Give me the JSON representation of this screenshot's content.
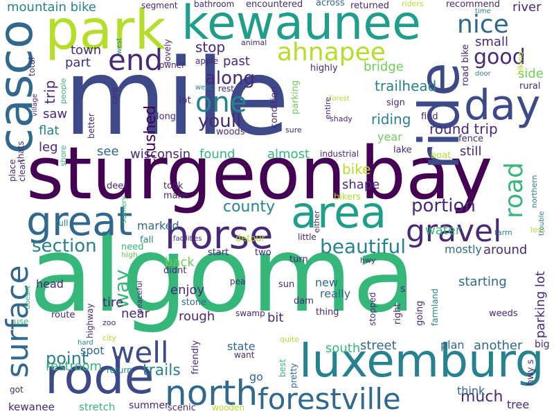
{
  "palette": {
    "purple": "#440154",
    "indigo": "#482878",
    "blue": "#3e4989",
    "steel": "#31688e",
    "teal": "#26828e",
    "green": "#1f9e89",
    "mint": "#35b779",
    "lime": "#6ece58",
    "yellow": "#b5de2b"
  },
  "words": [
    {
      "text": "algoma",
      "color": "mint"
    },
    {
      "text": "mile",
      "color": "blue"
    },
    {
      "text": "sturgeon",
      "color": "purple"
    },
    {
      "text": "bay",
      "color": "purple"
    },
    {
      "text": "ride",
      "color": "blue"
    },
    {
      "text": "park",
      "color": "yellow"
    },
    {
      "text": "kewaunee",
      "color": "green"
    },
    {
      "text": "casco",
      "color": "steel"
    },
    {
      "text": "luxemburg",
      "color": "teal"
    },
    {
      "text": "rode",
      "color": "blue"
    },
    {
      "text": "area",
      "color": "green"
    },
    {
      "text": "day",
      "color": "blue"
    },
    {
      "text": "great",
      "color": "steel"
    },
    {
      "text": "horse",
      "color": "indigo"
    },
    {
      "text": "surface",
      "color": "steel"
    },
    {
      "text": "north",
      "color": "steel"
    },
    {
      "text": "forestville",
      "color": "steel"
    },
    {
      "text": "well",
      "color": "blue"
    },
    {
      "text": "gravel",
      "color": "indigo"
    },
    {
      "text": "one",
      "color": "teal"
    },
    {
      "text": "end",
      "color": "indigo"
    },
    {
      "text": "road",
      "color": "mint"
    },
    {
      "text": "nice",
      "color": "steel"
    },
    {
      "text": "ahnapee",
      "color": "yellow"
    },
    {
      "text": "good",
      "color": "indigo"
    },
    {
      "text": "youll",
      "color": "indigo"
    },
    {
      "text": "along",
      "color": "indigo"
    },
    {
      "text": "beautiful",
      "color": "teal"
    },
    {
      "text": "section",
      "color": "teal"
    },
    {
      "text": "way",
      "color": "mint"
    },
    {
      "text": "county",
      "color": "teal"
    },
    {
      "text": "portion",
      "color": "indigo"
    },
    {
      "text": "round trip",
      "color": "indigo"
    },
    {
      "text": "much",
      "color": "indigo"
    },
    {
      "text": "point",
      "color": "teal"
    },
    {
      "text": "trails",
      "color": "teal"
    },
    {
      "text": "restroom",
      "color": "mint"
    },
    {
      "text": "bike",
      "color": "yellow"
    },
    {
      "text": "stop",
      "color": "indigo"
    },
    {
      "text": "mountain bike",
      "color": "teal"
    },
    {
      "text": "town",
      "color": "indigo"
    },
    {
      "text": "trip",
      "color": "indigo"
    },
    {
      "text": "part",
      "color": "indigo"
    },
    {
      "text": "small",
      "color": "indigo"
    },
    {
      "text": "side",
      "color": "lime"
    },
    {
      "text": "river",
      "color": "indigo"
    },
    {
      "text": "crushed",
      "color": "purple"
    },
    {
      "text": "riding",
      "color": "teal"
    },
    {
      "text": "trailhead",
      "color": "teal"
    },
    {
      "text": "bridge",
      "color": "lime"
    },
    {
      "text": "past",
      "color": "indigo"
    },
    {
      "text": "parking lot",
      "color": "indigo"
    },
    {
      "text": "wisconsin",
      "color": "indigo"
    },
    {
      "text": "found",
      "color": "mint"
    },
    {
      "text": "almost",
      "color": "mint"
    },
    {
      "text": "around",
      "color": "indigo"
    },
    {
      "text": "saw",
      "color": "indigo"
    },
    {
      "text": "leg",
      "color": "indigo"
    },
    {
      "text": "flat",
      "color": "teal"
    },
    {
      "text": "see",
      "color": "steel"
    },
    {
      "text": "back",
      "color": "lime"
    },
    {
      "text": "enjoy",
      "color": "indigo"
    },
    {
      "text": "tire",
      "color": "indigo"
    },
    {
      "text": "near",
      "color": "indigo"
    },
    {
      "text": "rough",
      "color": "indigo"
    },
    {
      "text": "head",
      "color": "indigo"
    },
    {
      "text": "new",
      "color": "steel"
    },
    {
      "text": "really",
      "color": "steel"
    },
    {
      "text": "starting",
      "color": "steel"
    },
    {
      "text": "street",
      "color": "steel"
    },
    {
      "text": "another",
      "color": "steel"
    },
    {
      "text": "south",
      "color": "mint"
    },
    {
      "text": "mostly",
      "color": "steel"
    },
    {
      "text": "water",
      "color": "mint"
    },
    {
      "text": "shape",
      "color": "indigo"
    },
    {
      "text": "year",
      "color": "lime"
    },
    {
      "text": "still",
      "color": "indigo"
    },
    {
      "text": "marked",
      "color": "steel"
    },
    {
      "text": "bit",
      "color": "indigo"
    },
    {
      "text": "spot",
      "color": "steel"
    },
    {
      "text": "tree",
      "color": "indigo"
    },
    {
      "text": "go",
      "color": "steel"
    },
    {
      "text": "think",
      "color": "steel"
    },
    {
      "text": "stretch",
      "color": "mint"
    },
    {
      "text": "kewanee",
      "color": "indigo"
    },
    {
      "text": "summer",
      "color": "indigo"
    },
    {
      "text": "scenic",
      "color": "indigo"
    },
    {
      "text": "wooden",
      "color": "yellow"
    },
    {
      "text": "state",
      "color": "steel"
    },
    {
      "text": "plan",
      "color": "steel"
    },
    {
      "text": "big",
      "color": "indigo"
    },
    {
      "text": "segment",
      "color": "indigo"
    },
    {
      "text": "bathroom",
      "color": "indigo"
    },
    {
      "text": "encountered",
      "color": "indigo"
    },
    {
      "text": "across",
      "color": "steel"
    },
    {
      "text": "returned",
      "color": "indigo"
    },
    {
      "text": "riders",
      "color": "yellow"
    },
    {
      "text": "recommend",
      "color": "indigo"
    },
    {
      "text": "time",
      "color": "teal"
    },
    {
      "text": "owner",
      "color": "indigo"
    },
    {
      "text": "apple",
      "color": "indigo"
    },
    {
      "text": "highly",
      "color": "indigo"
    },
    {
      "text": "rest",
      "color": "indigo"
    },
    {
      "text": "went",
      "color": "teal"
    },
    {
      "text": "lot",
      "color": "indigo"
    },
    {
      "text": "long",
      "color": "indigo"
    },
    {
      "text": "woods",
      "color": "indigo"
    },
    {
      "text": "sign",
      "color": "indigo"
    },
    {
      "text": "find",
      "color": "indigo"
    },
    {
      "text": "fence",
      "color": "indigo"
    },
    {
      "text": "lake",
      "color": "indigo"
    },
    {
      "text": "boat",
      "color": "yellow"
    },
    {
      "text": "industrial",
      "color": "indigo"
    },
    {
      "text": "rural",
      "color": "indigo"
    },
    {
      "text": "forest",
      "color": "yellow"
    },
    {
      "text": "shady",
      "color": "indigo"
    },
    {
      "text": "sure",
      "color": "indigo"
    },
    {
      "text": "deer",
      "color": "indigo"
    },
    {
      "text": "took",
      "color": "indigo"
    },
    {
      "text": "make",
      "color": "indigo"
    },
    {
      "text": "fall",
      "color": "teal"
    },
    {
      "text": "facilities",
      "color": "indigo"
    },
    {
      "text": "detour",
      "color": "yellow"
    },
    {
      "text": "little",
      "color": "indigo"
    },
    {
      "text": "need",
      "color": "mint"
    },
    {
      "text": "high",
      "color": "lime"
    },
    {
      "text": "didnt",
      "color": "indigo"
    },
    {
      "text": "stone",
      "color": "steel"
    },
    {
      "text": "start",
      "color": "indigo"
    },
    {
      "text": "two",
      "color": "indigo"
    },
    {
      "text": "turn",
      "color": "indigo"
    },
    {
      "text": "hwy",
      "color": "indigo"
    },
    {
      "text": "farm",
      "color": "teal"
    },
    {
      "text": "less",
      "color": "yellow"
    },
    {
      "text": "sun",
      "color": "indigo"
    },
    {
      "text": "pea",
      "color": "indigo"
    },
    {
      "text": "dam",
      "color": "indigo"
    },
    {
      "text": "s",
      "color": "indigo"
    },
    {
      "text": "thing",
      "color": "indigo"
    },
    {
      "text": "swamp",
      "color": "indigo"
    },
    {
      "text": "route",
      "color": "indigo"
    },
    {
      "text": "zoo",
      "color": "indigo"
    },
    {
      "text": "city",
      "color": "yellow"
    },
    {
      "text": "use",
      "color": "mint"
    },
    {
      "text": "hard",
      "color": "teal"
    },
    {
      "text": "return",
      "color": "teal"
    },
    {
      "text": "want",
      "color": "indigo"
    },
    {
      "text": "quite",
      "color": "yellow"
    },
    {
      "text": "got",
      "color": "indigo"
    },
    {
      "text": "weeds",
      "color": "indigo"
    },
    {
      "text": "full",
      "color": "teal"
    },
    {
      "text": "bikers",
      "color": "yellow"
    },
    {
      "text": "place",
      "color": "indigo"
    },
    {
      "text": "clean",
      "color": "indigo"
    },
    {
      "text": "village",
      "color": "indigo"
    },
    {
      "text": "total",
      "color": "indigo"
    },
    {
      "text": "people",
      "color": "mint"
    },
    {
      "text": "shore",
      "color": "mint"
    },
    {
      "text": "thats",
      "color": "indigo"
    },
    {
      "text": "better",
      "color": "indigo"
    },
    {
      "text": "care",
      "color": "indigo"
    },
    {
      "text": "west",
      "color": "teal"
    },
    {
      "text": "lovely",
      "color": "indigo"
    },
    {
      "text": "animal",
      "color": "indigo"
    },
    {
      "text": "road bike",
      "color": "indigo"
    },
    {
      "text": "door",
      "color": "teal"
    },
    {
      "text": "biking",
      "color": "yellow"
    },
    {
      "text": "condition",
      "color": "indigo"
    },
    {
      "text": "parking",
      "color": "lime"
    },
    {
      "text": "entire",
      "color": "indigo"
    },
    {
      "text": "scenery",
      "color": "mint"
    },
    {
      "text": "either",
      "color": "indigo"
    },
    {
      "text": "northern",
      "color": "teal"
    },
    {
      "text": "trouble",
      "color": "teal"
    },
    {
      "text": "highway",
      "color": "indigo"
    },
    {
      "text": "peaceful",
      "color": "indigo"
    },
    {
      "text": "friendly",
      "color": "indigo"
    },
    {
      "text": "doesnt",
      "color": "mint"
    },
    {
      "text": "best",
      "color": "mint"
    },
    {
      "text": "pretty",
      "color": "steel"
    },
    {
      "text": "stopped",
      "color": "indigo"
    },
    {
      "text": "right",
      "color": "indigo"
    },
    {
      "text": "going",
      "color": "indigo"
    },
    {
      "text": "farmland",
      "color": "teal"
    },
    {
      "text": "hwy s",
      "color": "indigo"
    }
  ]
}
